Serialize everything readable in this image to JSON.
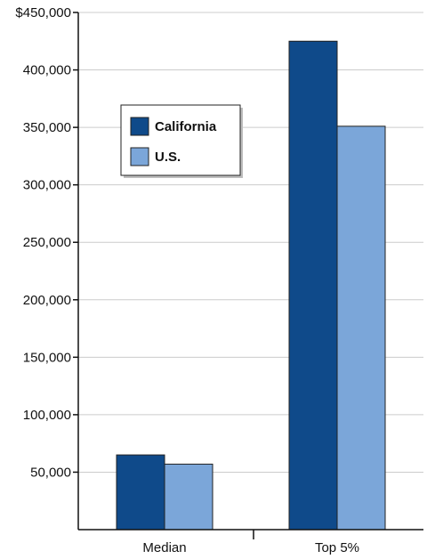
{
  "chart_data": {
    "type": "bar",
    "categories": [
      "Median",
      "Top 5%"
    ],
    "series": [
      {
        "name": "California",
        "values": [
          65000,
          425000
        ],
        "color": "#0f4a8a"
      },
      {
        "name": "U.S.",
        "values": [
          57000,
          351000
        ],
        "color": "#7ba6d9"
      }
    ],
    "ylim": [
      0,
      450000
    ],
    "y_ticks": [
      0,
      50000,
      100000,
      150000,
      200000,
      250000,
      300000,
      350000,
      400000,
      450000
    ],
    "y_tick_labels": [
      "",
      "50,000",
      "100,000",
      "150,000",
      "200,000",
      "250,000",
      "300,000",
      "350,000",
      "400,000",
      "$450,000"
    ],
    "grid": true,
    "legend_position": "upper-left",
    "title": "",
    "xlabel": "",
    "ylabel": ""
  }
}
